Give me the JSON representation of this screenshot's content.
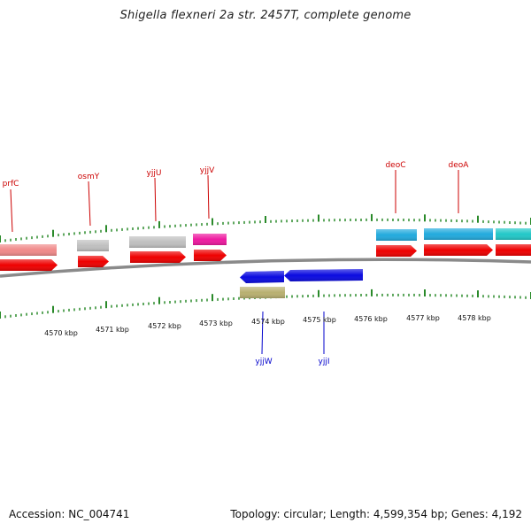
{
  "title": "Shigella flexneri 2a str. 2457T, complete genome",
  "footer": {
    "accession": "Accession: NC_004741",
    "summary": "Topology: circular; Length: 4,599,354 bp; Genes: 4,192"
  },
  "colors": {
    "label_top": "#cc0000",
    "label_bottom": "#0000cc",
    "tick": "#2a8a2a",
    "backbone": "#8a8a8a",
    "cds": "#ee0000",
    "pink": "#f08a8a",
    "grey": "#c0c0c0",
    "magenta": "#ee1aa0",
    "cyan": "#22aadd",
    "teal": "#22c8c8",
    "blue": "#0a0ae0",
    "olive": "#b8b070"
  },
  "scale": {
    "labels": [
      "4570 kbp",
      "4571 kbp",
      "4572 kbp",
      "4573 kbp",
      "4574 kbp",
      "4575 kbp",
      "4576 kbp",
      "4577 kbp",
      "4578 kbp"
    ]
  },
  "genes_top": [
    "prfC",
    "osmY",
    "yjjU",
    "yjjV",
    "deoC",
    "deoA"
  ],
  "genes_bottom": [
    "yjjW",
    "yjjI"
  ]
}
